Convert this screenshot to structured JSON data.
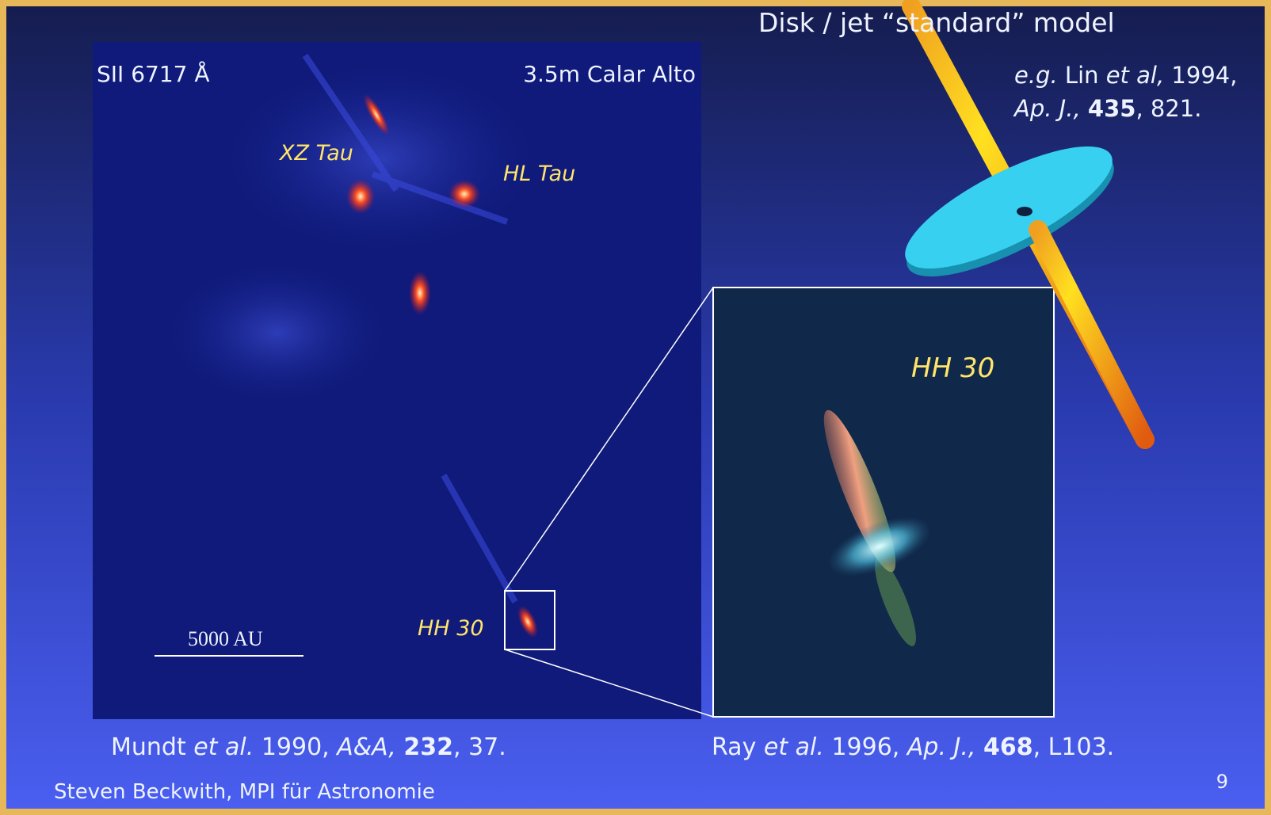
{
  "slide": {
    "title": "Disk / jet “standard” model",
    "left_image": {
      "line_label": "SII 6717 Å",
      "telescope": "3.5m Calar Alto",
      "objects": [
        "XZ Tau",
        "HL Tau",
        "HH 30"
      ],
      "scale_bar": "5000 AU"
    },
    "inset_image": {
      "label": "HH 30"
    },
    "model_citation": {
      "prefix": "e.g.",
      "author": "Lin",
      "etal": "et al,",
      "year": "1994,",
      "journal": "Ap. J.,",
      "volume": "435",
      "page": ", 821."
    },
    "left_citation": {
      "author": "Mundt",
      "etal": "et al.",
      "year": "1990,",
      "journal": "A&A,",
      "volume": "232",
      "page": ", 37."
    },
    "right_citation": {
      "author": "Ray",
      "etal": "et al.",
      "year": "1996,",
      "journal": "Ap. J.,",
      "volume": "468",
      "page": ", L103."
    },
    "footer": "Steven Beckwith, MPI für Astronomie",
    "page_number": "9"
  }
}
